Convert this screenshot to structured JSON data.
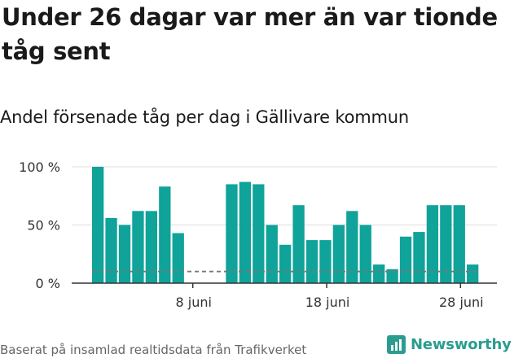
{
  "title": "Under 26 dagar var mer än var tionde tåg sent",
  "subtitle": "Andel försenade tåg per dag i Gällivare kommun",
  "footer": "Baserat på insamlad realtidsdata från Trafikverket",
  "logo_text": "Newsworthy",
  "colors": {
    "bar": "#0fa39a",
    "grid": "#dddddd",
    "axis": "#333333",
    "reference": "#777777",
    "brand": "#2a9d8f"
  },
  "chart_data": {
    "type": "bar",
    "x": [
      "1 juni",
      "2 juni",
      "3 juni",
      "4 juni",
      "5 juni",
      "6 juni",
      "7 juni",
      "8 juni",
      "9 juni",
      "10 juni",
      "11 juni",
      "12 juni",
      "13 juni",
      "14 juni",
      "15 juni",
      "16 juni",
      "17 juni",
      "18 juni",
      "19 juni",
      "20 juni",
      "21 juni",
      "22 juni",
      "23 juni",
      "24 juni",
      "25 juni",
      "26 juni",
      "27 juni",
      "28 juni",
      "29 juni"
    ],
    "values": [
      100,
      56,
      50,
      62,
      62,
      83,
      43,
      null,
      null,
      null,
      85,
      87,
      85,
      50,
      33,
      67,
      37,
      37,
      50,
      62,
      50,
      16,
      12,
      40,
      44,
      67,
      67,
      67,
      16
    ],
    "unit": "%",
    "yticks": [
      0,
      50,
      100
    ],
    "ytick_labels": [
      "0 %",
      "50 %",
      "100 %"
    ],
    "xtick_labels": [
      "8 juni",
      "18 juni",
      "28 juni"
    ],
    "xtick_positions": [
      "8 juni",
      "18 juni",
      "28 juni"
    ],
    "reference_line": 10,
    "ylim": [
      0,
      100
    ],
    "grid": true
  }
}
